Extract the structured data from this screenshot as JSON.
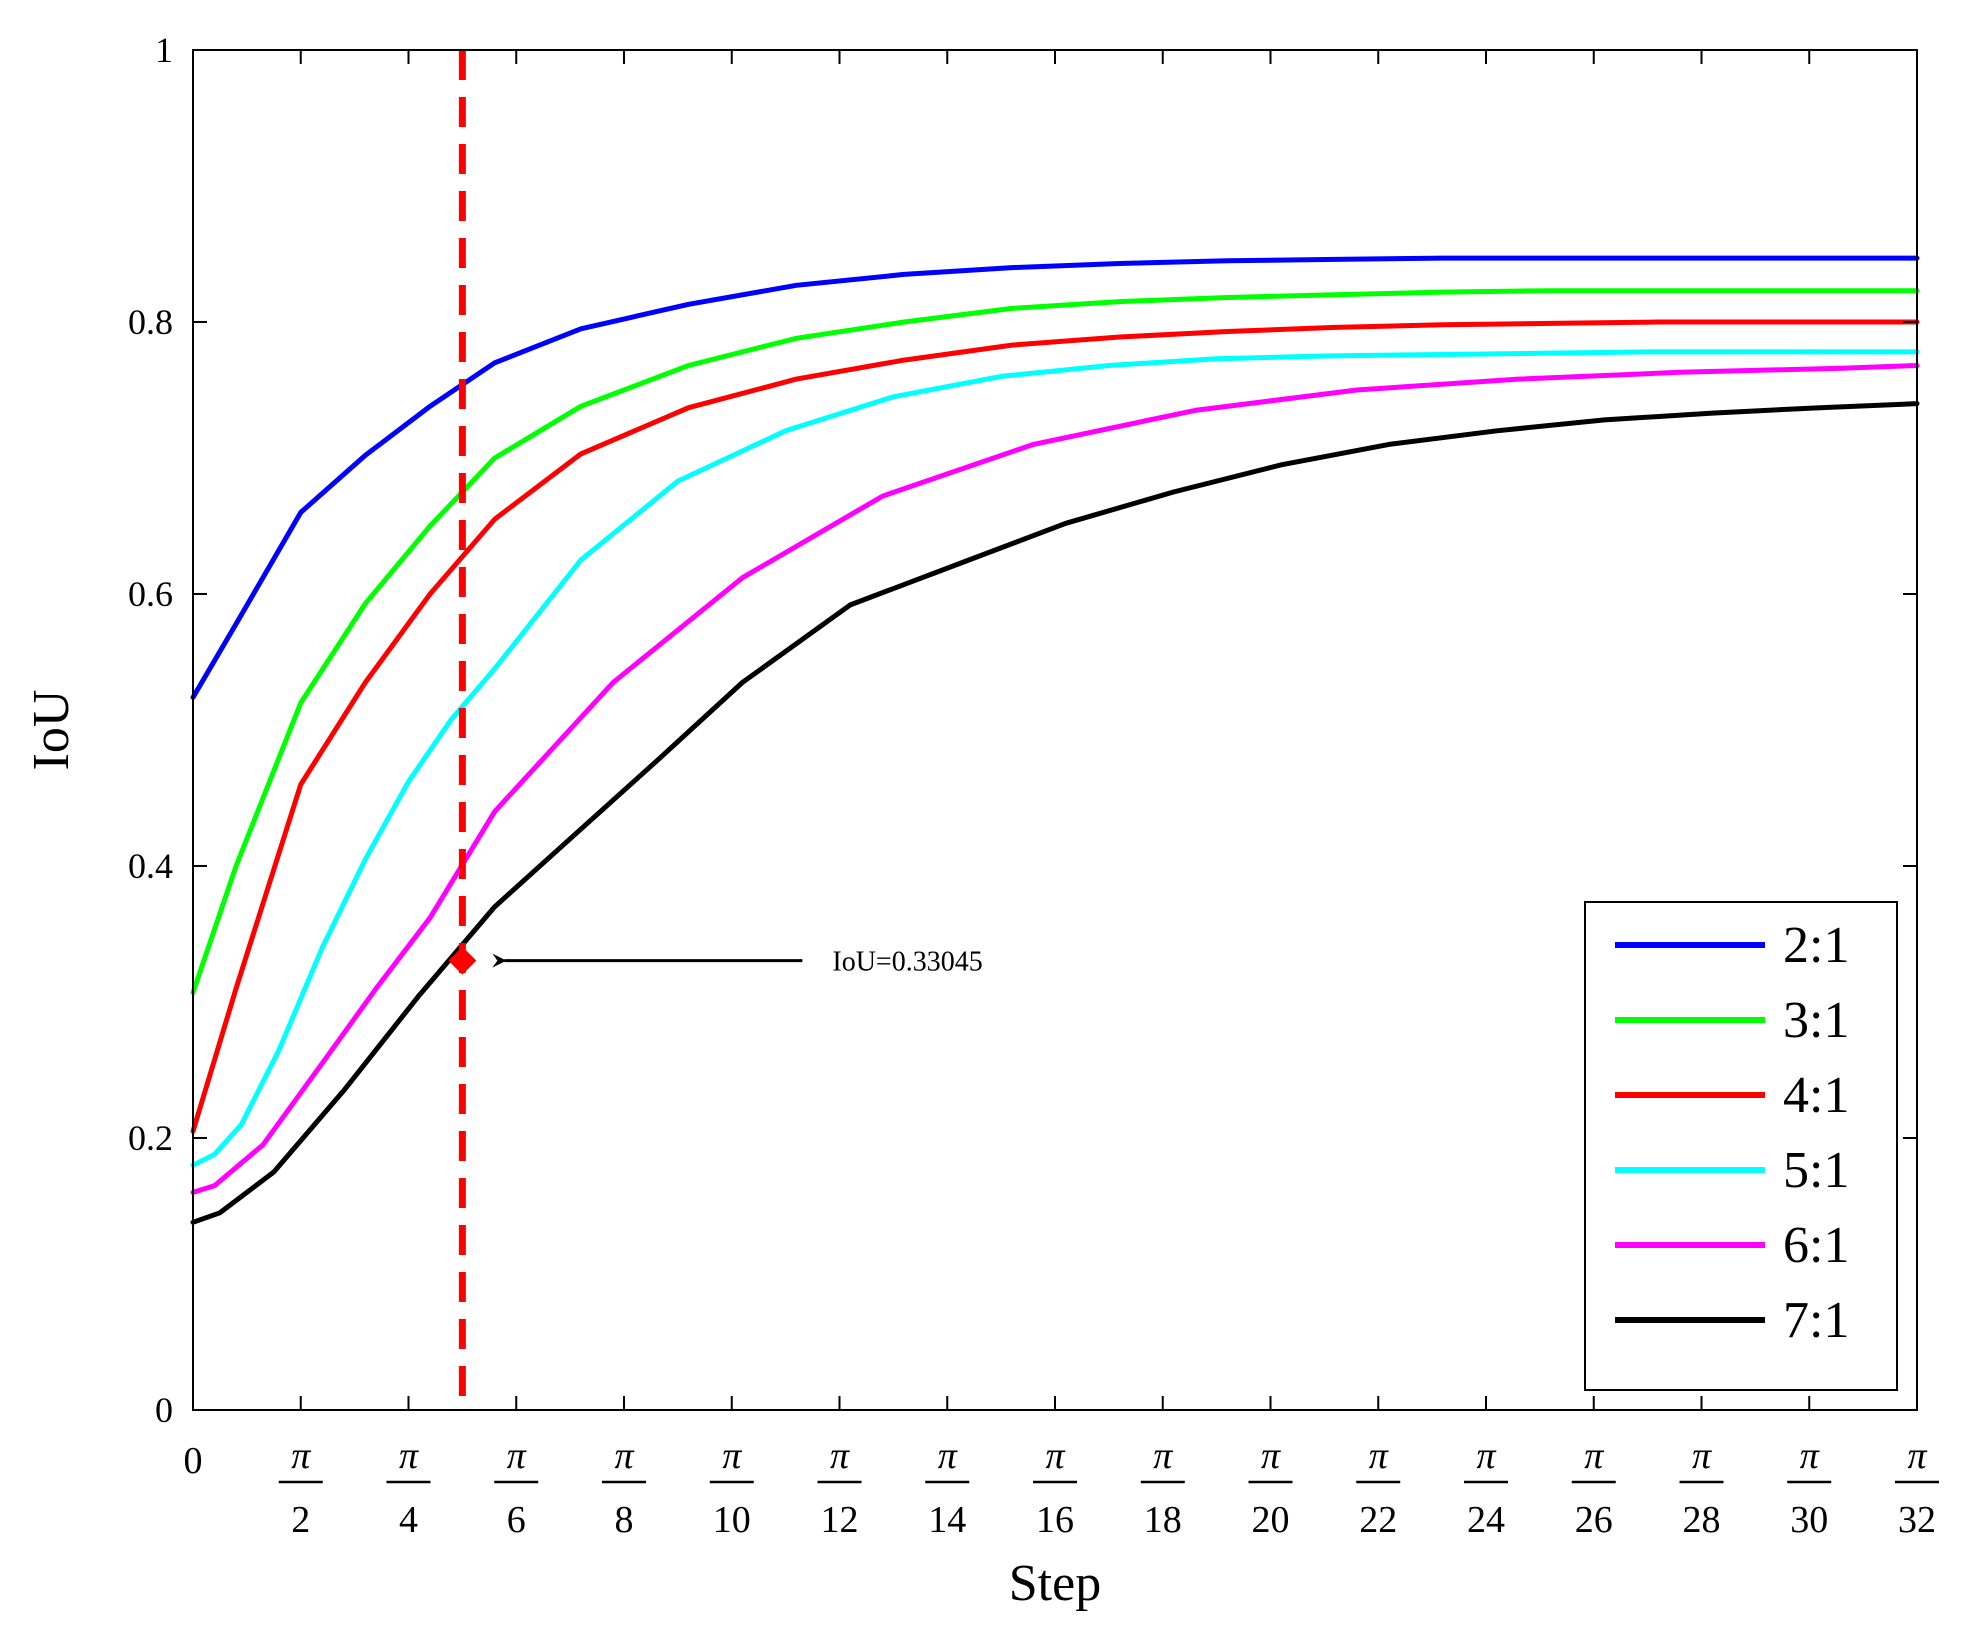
{
  "chart_data": {
    "type": "line",
    "xlabel": "Step",
    "ylabel": "IoU",
    "xlim": [
      0,
      32
    ],
    "ylim": [
      0,
      1
    ],
    "y_ticks": [
      {
        "value": 0,
        "label": "0"
      },
      {
        "value": 0.2,
        "label": "0.2"
      },
      {
        "value": 0.4,
        "label": "0.4"
      },
      {
        "value": 0.6,
        "label": "0.6"
      },
      {
        "value": 0.8,
        "label": "0.8"
      },
      {
        "value": 1,
        "label": "1"
      }
    ],
    "x_tick_zero_label": "0",
    "x_tick_numerator": "π",
    "x_ticks": [
      {
        "value": 2,
        "label": "2"
      },
      {
        "value": 4,
        "label": "4"
      },
      {
        "value": 6,
        "label": "6"
      },
      {
        "value": 8,
        "label": "8"
      },
      {
        "value": 10,
        "label": "10"
      },
      {
        "value": 12,
        "label": "12"
      },
      {
        "value": 14,
        "label": "14"
      },
      {
        "value": 16,
        "label": "16"
      },
      {
        "value": 18,
        "label": "18"
      },
      {
        "value": 20,
        "label": "20"
      },
      {
        "value": 22,
        "label": "22"
      },
      {
        "value": 24,
        "label": "24"
      },
      {
        "value": 26,
        "label": "26"
      },
      {
        "value": 28,
        "label": "28"
      },
      {
        "value": 30,
        "label": "30"
      },
      {
        "value": 32,
        "label": "32"
      }
    ],
    "legend_position": "bottom-right",
    "series": [
      {
        "name": "2:1",
        "color": "#0000ff",
        "x": [
          0,
          0.8,
          2,
          3.2,
          4.4,
          5.6,
          7.2,
          9.2,
          11.2,
          13.2,
          15.2,
          17.2,
          19.2,
          21.2,
          23.2,
          25.2,
          27.2,
          29.2,
          32
        ],
        "y": [
          0.524,
          0.578,
          0.66,
          0.702,
          0.738,
          0.77,
          0.795,
          0.813,
          0.827,
          0.835,
          0.84,
          0.843,
          0.845,
          0.846,
          0.847,
          0.847,
          0.847,
          0.847,
          0.847
        ]
      },
      {
        "name": "3:1",
        "color": "#00ff00",
        "x": [
          0,
          0.8,
          2,
          3.2,
          4.4,
          5.6,
          7.2,
          9.2,
          11.2,
          13.2,
          15.2,
          17.2,
          19.2,
          21.2,
          23.2,
          25.2,
          27.2,
          29.2,
          32
        ],
        "y": [
          0.307,
          0.4,
          0.52,
          0.593,
          0.65,
          0.7,
          0.738,
          0.768,
          0.788,
          0.8,
          0.81,
          0.815,
          0.818,
          0.82,
          0.822,
          0.823,
          0.823,
          0.823,
          0.823
        ]
      },
      {
        "name": "4:1",
        "color": "#ff0000",
        "x": [
          0,
          0.8,
          2,
          3.2,
          4.4,
          5.6,
          7.2,
          9.2,
          11.2,
          13.2,
          15.2,
          17.2,
          19.2,
          21.2,
          23.2,
          25.2,
          27.2,
          29.2,
          32
        ],
        "y": [
          0.205,
          0.31,
          0.46,
          0.535,
          0.6,
          0.655,
          0.703,
          0.737,
          0.758,
          0.772,
          0.783,
          0.789,
          0.793,
          0.796,
          0.798,
          0.799,
          0.8,
          0.8,
          0.8
        ]
      },
      {
        "name": "5:1",
        "color": "#00ffff",
        "x": [
          0,
          0.4,
          0.9,
          1.6,
          2.4,
          3.2,
          4,
          4.8,
          5.6,
          7.2,
          9,
          11,
          13,
          15,
          17,
          19,
          21,
          23,
          25,
          27,
          29,
          32
        ],
        "y": [
          0.18,
          0.188,
          0.21,
          0.265,
          0.34,
          0.405,
          0.462,
          0.508,
          0.545,
          0.625,
          0.683,
          0.72,
          0.745,
          0.76,
          0.768,
          0.773,
          0.775,
          0.776,
          0.777,
          0.778,
          0.778,
          0.778
        ]
      },
      {
        "name": "6:1",
        "color": "#ff00ff",
        "x": [
          0,
          0.4,
          1.3,
          2.4,
          3.4,
          4.4,
          5.6,
          7.8,
          10.2,
          12.8,
          15.6,
          18.6,
          21.6,
          24.6,
          27.6,
          30.6,
          32
        ],
        "y": [
          0.16,
          0.165,
          0.195,
          0.255,
          0.31,
          0.362,
          0.44,
          0.535,
          0.612,
          0.672,
          0.71,
          0.735,
          0.75,
          0.758,
          0.763,
          0.766,
          0.768
        ]
      },
      {
        "name": "7:1",
        "color": "#000000",
        "x": [
          0,
          0.5,
          1.5,
          2.8,
          4.2,
          5.6,
          7,
          8.6,
          10.2,
          12.2,
          14.2,
          16.2,
          18.2,
          20.2,
          22.2,
          24.2,
          26.2,
          28.2,
          30.2,
          32
        ],
        "y": [
          0.138,
          0.145,
          0.175,
          0.235,
          0.305,
          0.37,
          0.42,
          0.477,
          0.535,
          0.592,
          0.622,
          0.652,
          0.675,
          0.695,
          0.71,
          0.72,
          0.728,
          0.733,
          0.737,
          0.74
        ]
      }
    ],
    "reference_line": {
      "x": 5,
      "color": "#ff0000"
    },
    "annotation": {
      "text": "IoU=0.33045",
      "x": 5,
      "y": 0.33045,
      "color": "#ff0000"
    }
  }
}
